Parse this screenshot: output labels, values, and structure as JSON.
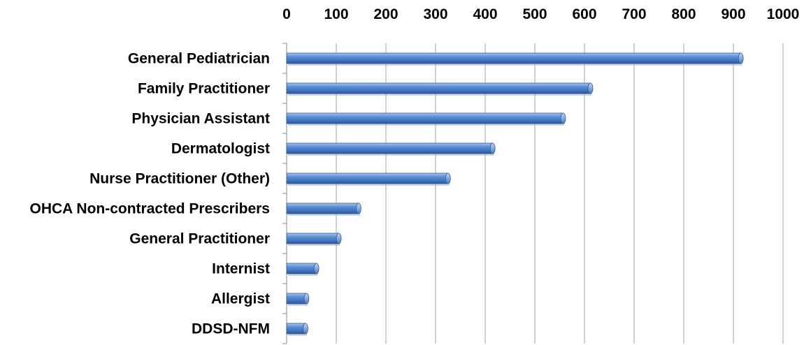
{
  "chart_data": {
    "type": "bar",
    "orientation": "horizontal",
    "categories": [
      "General Pediatrician",
      "Family Practitioner",
      "Physician Assistant",
      "Dermatologist",
      "Nurse Practitioner (Other)",
      "OHCA Non-contracted Prescribers",
      "General Practitioner",
      "Internist",
      "Allergist",
      "DDSD-NFM"
    ],
    "values": [
      915,
      612,
      557,
      415,
      325,
      145,
      105,
      60,
      40,
      38
    ],
    "xlim": [
      0,
      1000
    ],
    "xticks": [
      "0",
      "100",
      "200",
      "300",
      "400",
      "500",
      "600",
      "700",
      "800",
      "900",
      "1000"
    ],
    "x_axis_position": "top",
    "grid": true,
    "legend": "none",
    "bar_color": "#4f81bd",
    "title": "",
    "xlabel": "",
    "ylabel": ""
  }
}
